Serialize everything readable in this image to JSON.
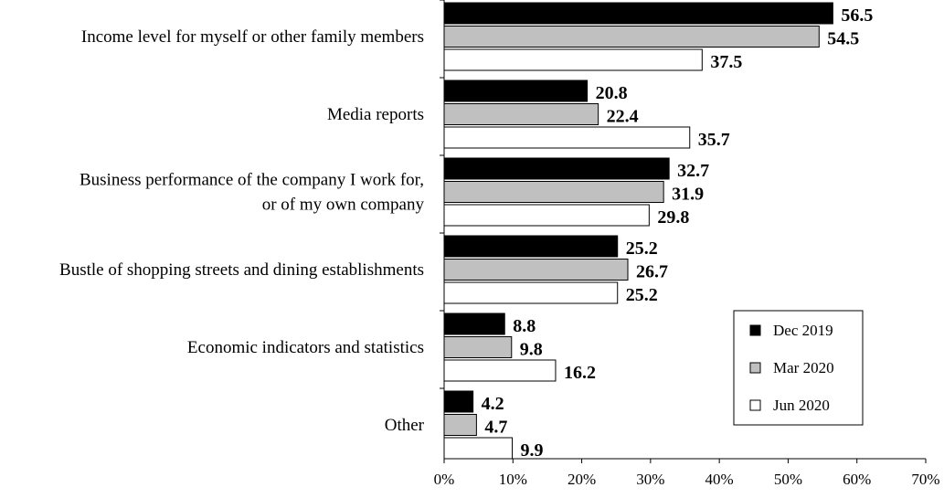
{
  "chart_data": {
    "type": "bar",
    "orientation": "horizontal",
    "categories": [
      [
        "Income level for myself or other family members"
      ],
      [
        "Media reports"
      ],
      [
        "Business performance of the company I work for,",
        "or of my own company"
      ],
      [
        "Bustle of shopping streets and dining establishments"
      ],
      [
        "Economic indicators and statistics"
      ],
      [
        "Other"
      ]
    ],
    "series": [
      {
        "name": "Dec 2019",
        "values": [
          56.5,
          20.8,
          32.7,
          25.2,
          8.8,
          4.2
        ],
        "color": "#000000"
      },
      {
        "name": "Mar 2020",
        "values": [
          54.5,
          22.4,
          31.9,
          26.7,
          9.8,
          4.7
        ],
        "color": "#c0c0c0"
      },
      {
        "name": "Jun 2020",
        "values": [
          37.5,
          35.7,
          29.8,
          25.2,
          16.2,
          9.9
        ],
        "color": "#ffffff"
      }
    ],
    "xlim": [
      0,
      70
    ],
    "xticks": [
      "0%",
      "10%",
      "20%",
      "30%",
      "40%",
      "50%",
      "60%",
      "70%"
    ],
    "grid": false,
    "legend_position": "lower-right"
  }
}
